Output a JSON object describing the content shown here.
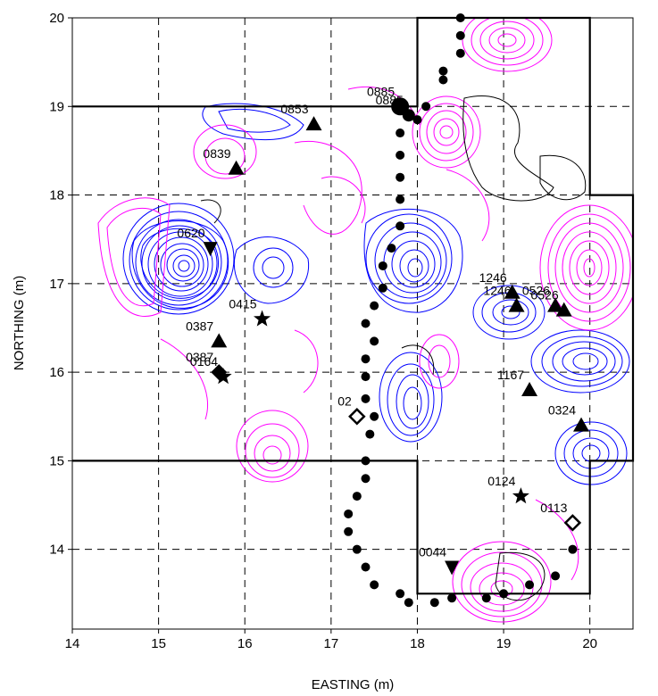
{
  "chart_data": {
    "type": "contour-map",
    "xlabel": "EASTING (m)",
    "ylabel": "NORTHING (m)",
    "xlim": [
      14,
      20.5
    ],
    "ylim": [
      13.1,
      20
    ],
    "x_ticks": [
      "14",
      "15",
      "16",
      "17",
      "18",
      "19",
      "20"
    ],
    "y_ticks": [
      "14",
      "15",
      "16",
      "17",
      "18",
      "19",
      "20"
    ],
    "grid": "dashed",
    "colors": {
      "positive": "#ff00ff",
      "negative": "#0000ff",
      "zero": "#000000",
      "markers": "#000000"
    },
    "boundary": [
      [
        14,
        19
      ],
      [
        18,
        19
      ],
      [
        18,
        20
      ],
      [
        20,
        20
      ],
      [
        20,
        18
      ],
      [
        20.5,
        18
      ],
      [
        20.5,
        15
      ],
      [
        20,
        15
      ],
      [
        20,
        13.5
      ],
      [
        18,
        13.5
      ],
      [
        18,
        15
      ],
      [
        14,
        15
      ]
    ],
    "traverse_path": [
      [
        18.5,
        20
      ],
      [
        18.5,
        19.8
      ],
      [
        18.5,
        19.6
      ],
      [
        18.3,
        19.4
      ],
      [
        18.3,
        19.3
      ],
      [
        18.1,
        19.0
      ],
      [
        18.0,
        18.85
      ],
      [
        17.8,
        18.7
      ],
      [
        17.8,
        18.45
      ],
      [
        17.8,
        18.2
      ],
      [
        17.8,
        17.95
      ],
      [
        17.8,
        17.65
      ],
      [
        17.7,
        17.4
      ],
      [
        17.6,
        17.2
      ],
      [
        17.6,
        16.95
      ],
      [
        17.5,
        16.75
      ],
      [
        17.4,
        16.55
      ],
      [
        17.5,
        16.35
      ],
      [
        17.4,
        16.15
      ],
      [
        17.4,
        15.95
      ],
      [
        17.4,
        15.7
      ],
      [
        17.5,
        15.5
      ],
      [
        17.45,
        15.3
      ],
      [
        17.4,
        15.0
      ],
      [
        17.4,
        14.8
      ],
      [
        17.3,
        14.6
      ],
      [
        17.2,
        14.4
      ],
      [
        17.2,
        14.2
      ],
      [
        17.3,
        14.0
      ],
      [
        17.4,
        13.8
      ],
      [
        17.5,
        13.6
      ],
      [
        17.8,
        13.5
      ],
      [
        17.9,
        13.4
      ],
      [
        18.2,
        13.4
      ],
      [
        18.4,
        13.45
      ],
      [
        18.8,
        13.45
      ],
      [
        19.0,
        13.5
      ],
      [
        19.3,
        13.6
      ],
      [
        19.6,
        13.7
      ],
      [
        19.8,
        14.0
      ]
    ],
    "markers": [
      {
        "type": "circle-large",
        "x": 17.8,
        "y": 19.0,
        "label": "0885"
      },
      {
        "type": "circle",
        "x": 17.9,
        "y": 18.9,
        "label": "0885"
      },
      {
        "type": "triangle",
        "x": 16.8,
        "y": 18.8,
        "label": "0853"
      },
      {
        "type": "triangle",
        "x": 15.9,
        "y": 18.3,
        "label": "0839"
      },
      {
        "type": "triangle-down",
        "x": 15.6,
        "y": 17.4,
        "label": "0620"
      },
      {
        "type": "star",
        "x": 16.2,
        "y": 16.6,
        "label": "0415"
      },
      {
        "type": "triangle",
        "x": 15.7,
        "y": 16.35,
        "label": "0387"
      },
      {
        "type": "diamond-filled",
        "x": 15.7,
        "y": 16.0,
        "label": "0387"
      },
      {
        "type": "star",
        "x": 15.75,
        "y": 15.95,
        "label": "0164"
      },
      {
        "type": "diamond-open",
        "x": 17.3,
        "y": 15.5,
        "label": "02"
      },
      {
        "type": "triangle",
        "x": 19.1,
        "y": 16.9,
        "label": "1246"
      },
      {
        "type": "triangle",
        "x": 19.15,
        "y": 16.75,
        "label": "1246"
      },
      {
        "type": "triangle",
        "x": 19.6,
        "y": 16.75,
        "label": "0526"
      },
      {
        "type": "triangle",
        "x": 19.7,
        "y": 16.7,
        "label": "0526"
      },
      {
        "type": "triangle",
        "x": 19.3,
        "y": 15.8,
        "label": "1167"
      },
      {
        "type": "triangle",
        "x": 19.9,
        "y": 15.4,
        "label": "0324"
      },
      {
        "type": "star",
        "x": 19.2,
        "y": 14.6,
        "label": "0124"
      },
      {
        "type": "diamond-open",
        "x": 19.8,
        "y": 14.3,
        "label": "0113"
      },
      {
        "type": "triangle-down",
        "x": 18.4,
        "y": 13.8,
        "label": "0044"
      }
    ]
  }
}
